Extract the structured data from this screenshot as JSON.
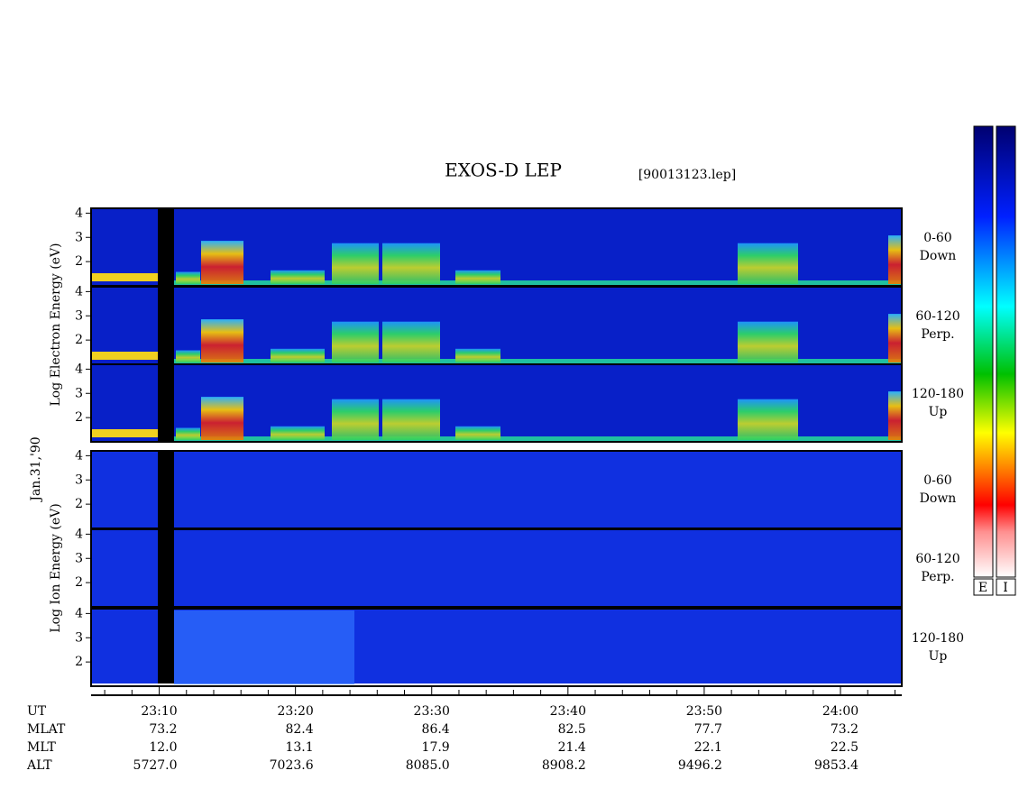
{
  "title": "EXOS-D LEP",
  "file": "[90013123.lep]",
  "date": "Jan.31,'90",
  "axis_labels": [
    "Log Electron Energy (eV)",
    "Log Ion Energy (eV)"
  ],
  "angles": [
    {
      "range": "0-60",
      "dir": "Down"
    },
    {
      "range": "60-120",
      "dir": "Perp."
    },
    {
      "range": "120-180",
      "dir": "Up"
    }
  ],
  "ylim": [
    1,
    4.2
  ],
  "yticks": [
    2,
    3,
    4
  ],
  "xlim": [
    1385,
    1444.5
  ],
  "xticks": [
    {
      "value": 1390,
      "label": "23:10"
    },
    {
      "value": 1400,
      "label": "23:20"
    },
    {
      "value": 1410,
      "label": "23:30"
    },
    {
      "value": 1420,
      "label": "23:40"
    },
    {
      "value": 1430,
      "label": "23:50"
    },
    {
      "value": 1440,
      "label": "24:00"
    }
  ],
  "minor_xticks": [
    1386,
    1388,
    1392,
    1394,
    1396,
    1398,
    1402,
    1404,
    1406,
    1408,
    1412,
    1414,
    1416,
    1418,
    1422,
    1424,
    1426,
    1428,
    1432,
    1434,
    1436,
    1438,
    1442,
    1444
  ],
  "rows": [
    {
      "name": "UT"
    },
    {
      "name": "MLAT",
      "values": [
        "73.2",
        "82.4",
        "86.4",
        "82.5",
        "77.7",
        "73.2"
      ]
    },
    {
      "name": "MLT",
      "values": [
        "12.0",
        "13.1",
        "17.9",
        "21.4",
        "22.1",
        "22.5"
      ]
    },
    {
      "name": "ALT",
      "values": [
        "5727.0",
        "7023.6",
        "8085.0",
        "8908.2",
        "9496.2",
        "9853.4"
      ]
    }
  ],
  "colorbar_labels": [
    "E",
    "I"
  ]
}
